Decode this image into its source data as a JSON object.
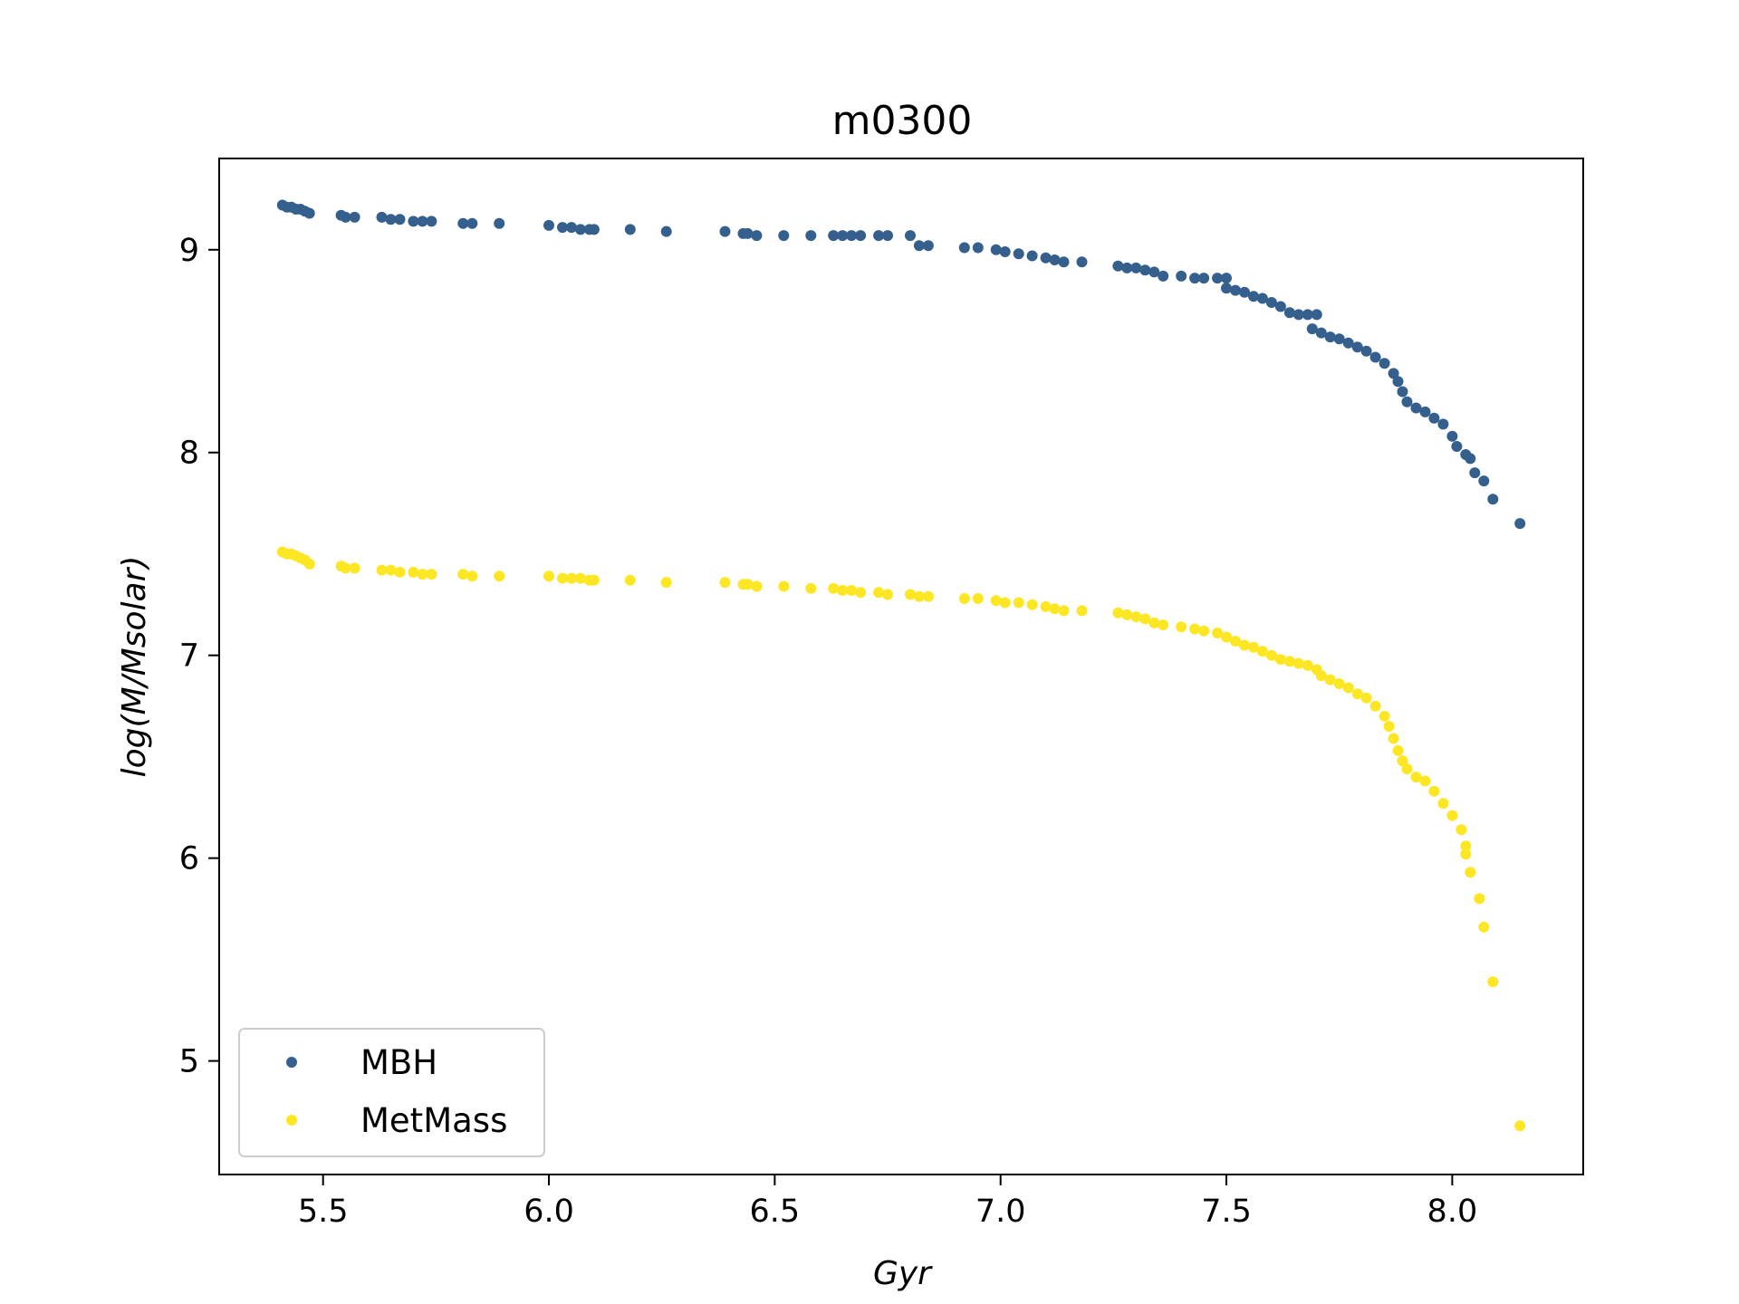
{
  "chart_data": {
    "type": "scatter",
    "title": "m0300",
    "xlabel": "Gyr",
    "ylabel": "log(M/Msolar)",
    "xlim": [
      5.27,
      8.29
    ],
    "ylim": [
      4.44,
      9.45
    ],
    "xticks": [
      "5.5",
      "6.0",
      "6.5",
      "7.0",
      "7.5",
      "8.0"
    ],
    "yticks": [
      "5",
      "6",
      "7",
      "8",
      "9"
    ],
    "grid": false,
    "legend_position": "lower-left",
    "series": [
      {
        "name": "MBH",
        "color": "#35608d",
        "points": [
          [
            5.41,
            9.22
          ],
          [
            5.42,
            9.21
          ],
          [
            5.43,
            9.21
          ],
          [
            5.44,
            9.2
          ],
          [
            5.45,
            9.2
          ],
          [
            5.46,
            9.19
          ],
          [
            5.47,
            9.18
          ],
          [
            5.54,
            9.17
          ],
          [
            5.55,
            9.16
          ],
          [
            5.57,
            9.16
          ],
          [
            5.63,
            9.16
          ],
          [
            5.65,
            9.15
          ],
          [
            5.67,
            9.15
          ],
          [
            5.7,
            9.14
          ],
          [
            5.72,
            9.14
          ],
          [
            5.74,
            9.14
          ],
          [
            5.81,
            9.13
          ],
          [
            5.83,
            9.13
          ],
          [
            5.89,
            9.13
          ],
          [
            6.0,
            9.12
          ],
          [
            6.03,
            9.11
          ],
          [
            6.05,
            9.11
          ],
          [
            6.07,
            9.1
          ],
          [
            6.09,
            9.1
          ],
          [
            6.1,
            9.1
          ],
          [
            6.18,
            9.1
          ],
          [
            6.26,
            9.09
          ],
          [
            6.39,
            9.09
          ],
          [
            6.43,
            9.08
          ],
          [
            6.44,
            9.08
          ],
          [
            6.46,
            9.07
          ],
          [
            6.52,
            9.07
          ],
          [
            6.58,
            9.07
          ],
          [
            6.63,
            9.07
          ],
          [
            6.65,
            9.07
          ],
          [
            6.67,
            9.07
          ],
          [
            6.69,
            9.07
          ],
          [
            6.73,
            9.07
          ],
          [
            6.75,
            9.07
          ],
          [
            6.8,
            9.07
          ],
          [
            6.82,
            9.02
          ],
          [
            6.84,
            9.02
          ],
          [
            6.92,
            9.01
          ],
          [
            6.95,
            9.01
          ],
          [
            6.99,
            9.0
          ],
          [
            7.01,
            8.99
          ],
          [
            7.04,
            8.98
          ],
          [
            7.07,
            8.97
          ],
          [
            7.1,
            8.96
          ],
          [
            7.12,
            8.95
          ],
          [
            7.14,
            8.94
          ],
          [
            7.18,
            8.94
          ],
          [
            7.26,
            8.92
          ],
          [
            7.28,
            8.91
          ],
          [
            7.3,
            8.91
          ],
          [
            7.32,
            8.9
          ],
          [
            7.34,
            8.89
          ],
          [
            7.36,
            8.87
          ],
          [
            7.4,
            8.87
          ],
          [
            7.43,
            8.86
          ],
          [
            7.45,
            8.86
          ],
          [
            7.48,
            8.86
          ],
          [
            7.5,
            8.86
          ],
          [
            7.5,
            8.81
          ],
          [
            7.52,
            8.8
          ],
          [
            7.54,
            8.79
          ],
          [
            7.56,
            8.77
          ],
          [
            7.58,
            8.76
          ],
          [
            7.6,
            8.74
          ],
          [
            7.62,
            8.72
          ],
          [
            7.64,
            8.69
          ],
          [
            7.66,
            8.68
          ],
          [
            7.68,
            8.68
          ],
          [
            7.7,
            8.68
          ],
          [
            7.69,
            8.61
          ],
          [
            7.71,
            8.59
          ],
          [
            7.73,
            8.57
          ],
          [
            7.75,
            8.56
          ],
          [
            7.77,
            8.54
          ],
          [
            7.79,
            8.52
          ],
          [
            7.81,
            8.5
          ],
          [
            7.83,
            8.47
          ],
          [
            7.85,
            8.44
          ],
          [
            7.87,
            8.39
          ],
          [
            7.88,
            8.35
          ],
          [
            7.89,
            8.3
          ],
          [
            7.9,
            8.25
          ],
          [
            7.92,
            8.22
          ],
          [
            7.94,
            8.2
          ],
          [
            7.96,
            8.17
          ],
          [
            7.98,
            8.14
          ],
          [
            8.0,
            8.08
          ],
          [
            8.01,
            8.03
          ],
          [
            8.03,
            7.99
          ],
          [
            8.04,
            7.97
          ],
          [
            8.05,
            7.9
          ],
          [
            8.07,
            7.86
          ],
          [
            8.09,
            7.77
          ],
          [
            8.15,
            7.65
          ]
        ]
      },
      {
        "name": "MetMass",
        "color": "#fde725",
        "points": [
          [
            5.41,
            7.51
          ],
          [
            5.42,
            7.5
          ],
          [
            5.43,
            7.5
          ],
          [
            5.44,
            7.49
          ],
          [
            5.45,
            7.48
          ],
          [
            5.46,
            7.47
          ],
          [
            5.47,
            7.45
          ],
          [
            5.54,
            7.44
          ],
          [
            5.55,
            7.43
          ],
          [
            5.57,
            7.43
          ],
          [
            5.63,
            7.42
          ],
          [
            5.65,
            7.42
          ],
          [
            5.67,
            7.41
          ],
          [
            5.7,
            7.41
          ],
          [
            5.72,
            7.4
          ],
          [
            5.74,
            7.4
          ],
          [
            5.81,
            7.4
          ],
          [
            5.83,
            7.39
          ],
          [
            5.89,
            7.39
          ],
          [
            6.0,
            7.39
          ],
          [
            6.03,
            7.38
          ],
          [
            6.05,
            7.38
          ],
          [
            6.07,
            7.38
          ],
          [
            6.09,
            7.37
          ],
          [
            6.1,
            7.37
          ],
          [
            6.18,
            7.37
          ],
          [
            6.26,
            7.36
          ],
          [
            6.39,
            7.36
          ],
          [
            6.43,
            7.35
          ],
          [
            6.44,
            7.35
          ],
          [
            6.46,
            7.34
          ],
          [
            6.52,
            7.34
          ],
          [
            6.58,
            7.33
          ],
          [
            6.63,
            7.33
          ],
          [
            6.65,
            7.32
          ],
          [
            6.67,
            7.32
          ],
          [
            6.69,
            7.31
          ],
          [
            6.73,
            7.31
          ],
          [
            6.75,
            7.3
          ],
          [
            6.8,
            7.3
          ],
          [
            6.82,
            7.29
          ],
          [
            6.84,
            7.29
          ],
          [
            6.92,
            7.28
          ],
          [
            6.95,
            7.28
          ],
          [
            6.99,
            7.27
          ],
          [
            7.01,
            7.26
          ],
          [
            7.04,
            7.26
          ],
          [
            7.07,
            7.25
          ],
          [
            7.1,
            7.24
          ],
          [
            7.12,
            7.23
          ],
          [
            7.14,
            7.22
          ],
          [
            7.18,
            7.22
          ],
          [
            7.26,
            7.21
          ],
          [
            7.28,
            7.2
          ],
          [
            7.3,
            7.19
          ],
          [
            7.32,
            7.18
          ],
          [
            7.34,
            7.16
          ],
          [
            7.36,
            7.15
          ],
          [
            7.4,
            7.14
          ],
          [
            7.43,
            7.13
          ],
          [
            7.45,
            7.12
          ],
          [
            7.48,
            7.11
          ],
          [
            7.5,
            7.09
          ],
          [
            7.52,
            7.07
          ],
          [
            7.54,
            7.05
          ],
          [
            7.56,
            7.04
          ],
          [
            7.58,
            7.02
          ],
          [
            7.6,
            7.0
          ],
          [
            7.62,
            6.98
          ],
          [
            7.64,
            6.97
          ],
          [
            7.66,
            6.96
          ],
          [
            7.68,
            6.95
          ],
          [
            7.7,
            6.93
          ],
          [
            7.71,
            6.9
          ],
          [
            7.73,
            6.88
          ],
          [
            7.75,
            6.86
          ],
          [
            7.77,
            6.84
          ],
          [
            7.79,
            6.81
          ],
          [
            7.81,
            6.79
          ],
          [
            7.83,
            6.75
          ],
          [
            7.85,
            6.7
          ],
          [
            7.86,
            6.65
          ],
          [
            7.87,
            6.59
          ],
          [
            7.88,
            6.53
          ],
          [
            7.89,
            6.48
          ],
          [
            7.9,
            6.44
          ],
          [
            7.92,
            6.4
          ],
          [
            7.94,
            6.38
          ],
          [
            7.96,
            6.33
          ],
          [
            7.98,
            6.27
          ],
          [
            8.0,
            6.21
          ],
          [
            8.02,
            6.14
          ],
          [
            8.03,
            6.06
          ],
          [
            8.03,
            6.02
          ],
          [
            8.04,
            5.93
          ],
          [
            8.06,
            5.8
          ],
          [
            8.07,
            5.66
          ],
          [
            8.09,
            5.39
          ],
          [
            8.15,
            4.68
          ]
        ]
      }
    ]
  }
}
